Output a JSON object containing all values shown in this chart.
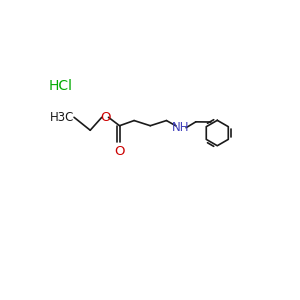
{
  "bg_color": "#ffffff",
  "bond_color": "#1a1a1a",
  "o_color": "#cc0000",
  "n_color": "#4040bb",
  "hcl_color": "#00aa00",
  "hcl_label": "HCl",
  "nh_label": "NH",
  "o_label": "O",
  "h3c_label": "H3C",
  "figsize": [
    3.0,
    3.0
  ],
  "dpi": 100
}
